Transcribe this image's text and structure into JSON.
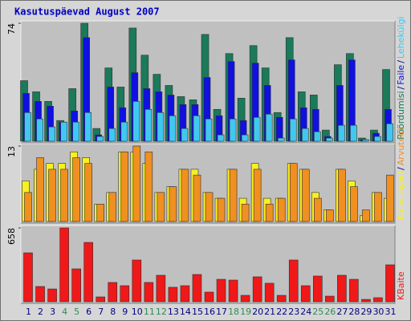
{
  "title": "Kasutuspäevad August 2007",
  "legend_separator": "/",
  "chart_data": [
    {
      "type": "bar",
      "ylim": [
        0,
        74
      ],
      "yticks": [
        74
      ],
      "series": [
        {
          "name": "Pöördumisi",
          "color": "#1a7a5a",
          "values": [
            38,
            31,
            25,
            13,
            33,
            74,
            8,
            46,
            34,
            71,
            54,
            42,
            35,
            28,
            26,
            67,
            20,
            55,
            27,
            60,
            46,
            18,
            65,
            31,
            29,
            7,
            48,
            55,
            2,
            7,
            45
          ]
        },
        {
          "name": "Faile",
          "color": "#1010e0",
          "values": [
            30,
            25,
            22,
            12,
            19,
            65,
            4,
            34,
            21,
            43,
            33,
            31,
            29,
            23,
            23,
            40,
            16,
            50,
            13,
            49,
            35,
            15,
            51,
            21,
            20,
            3,
            35,
            51,
            1,
            5,
            20
          ]
        },
        {
          "name": "Lehekülgi",
          "color": "#40c8f0",
          "values": [
            18,
            14,
            9,
            12,
            12,
            18,
            3,
            8,
            12,
            25,
            20,
            18,
            16,
            8,
            16,
            14,
            4,
            14,
            4,
            15,
            17,
            2,
            14,
            8,
            6,
            2,
            10,
            10,
            1,
            3,
            11
          ]
        }
      ]
    },
    {
      "type": "bar",
      "ylim": [
        0,
        13
      ],
      "yticks": [
        13
      ],
      "series": [
        {
          "name": "Külastajaid",
          "color": "#f8f020",
          "values": [
            7,
            9,
            10,
            10,
            12,
            11,
            3,
            5,
            12,
            12,
            10,
            5,
            6,
            9,
            9,
            5,
            4,
            9,
            4,
            10,
            4,
            4,
            10,
            9,
            5,
            2,
            9,
            7,
            1,
            5,
            4
          ]
        },
        {
          "name": "Arvuteid",
          "color": "#f09020",
          "values": [
            5,
            11,
            9,
            9,
            11,
            10,
            3,
            5,
            12,
            13,
            12,
            5,
            6,
            9,
            8,
            5,
            4,
            9,
            3,
            9,
            3,
            4,
            10,
            9,
            4,
            2,
            9,
            6,
            2,
            5,
            8
          ]
        }
      ]
    },
    {
      "type": "bar",
      "ylim": [
        0,
        658
      ],
      "yticks": [
        658
      ],
      "categories": [
        "1",
        "2",
        "3",
        "4",
        "5",
        "6",
        "7",
        "8",
        "9",
        "10",
        "11",
        "12",
        "13",
        "14",
        "15",
        "16",
        "17",
        "18",
        "19",
        "20",
        "21",
        "22",
        "23",
        "24",
        "25",
        "26",
        "27",
        "28",
        "29",
        "30",
        "31"
      ],
      "category_colors": [
        "#000080",
        "#000080",
        "#000080",
        "#2e8b57",
        "#2e8b57",
        "#000080",
        "#000080",
        "#000080",
        "#000080",
        "#000080",
        "#2e8b57",
        "#2e8b57",
        "#000080",
        "#000080",
        "#000080",
        "#000080",
        "#000080",
        "#2e8b57",
        "#2e8b57",
        "#000080",
        "#000080",
        "#000080",
        "#000080",
        "#000080",
        "#2e8b57",
        "#2e8b57",
        "#000080",
        "#000080",
        "#000080",
        "#000080",
        "#000080"
      ],
      "series": [
        {
          "name": "KBaite",
          "color": "#f01818",
          "values": [
            436,
            136,
            114,
            658,
            293,
            529,
            43,
            172,
            143,
            372,
            172,
            236,
            129,
            143,
            243,
            86,
            200,
            193,
            57,
            222,
            165,
            57,
            372,
            143,
            229,
            50,
            236,
            200,
            21,
            36,
            329
          ]
        }
      ]
    }
  ]
}
